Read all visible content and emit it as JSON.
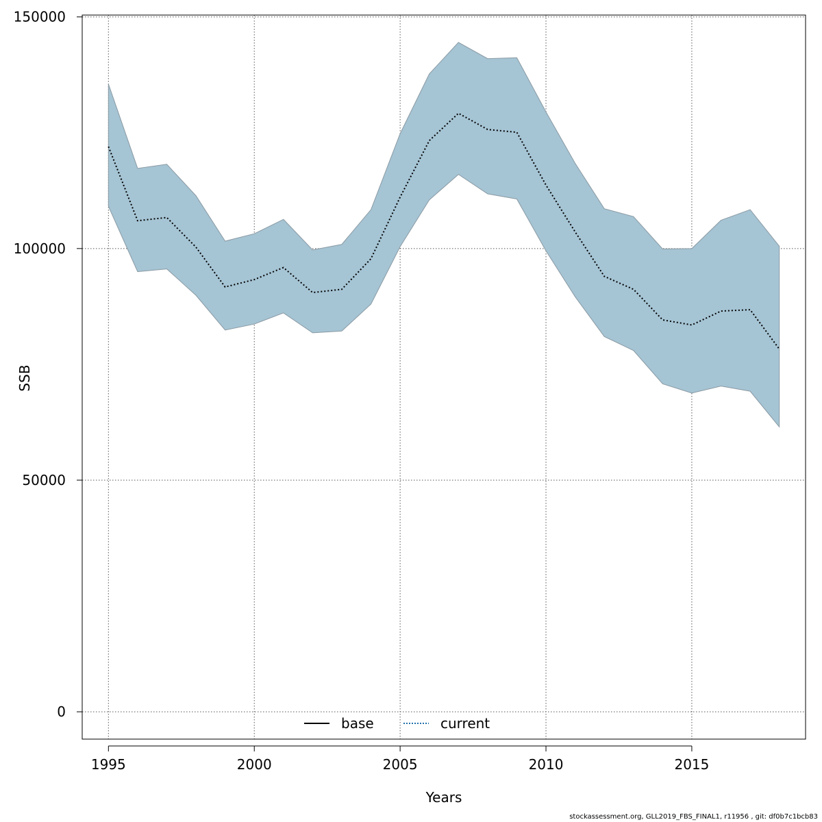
{
  "chart_data": {
    "type": "area",
    "xlabel": "Years",
    "ylabel": "SSB",
    "xlim": [
      1994.1,
      2018.9
    ],
    "ylim": [
      -5900,
      150400
    ],
    "x_ticks": [
      1995,
      2000,
      2005,
      2010,
      2015
    ],
    "y_ticks": [
      0,
      50000,
      100000,
      150000
    ],
    "grid": true,
    "legend_position": "bottom",
    "legend": [
      {
        "label": "base",
        "style": "solid",
        "color": "#000000"
      },
      {
        "label": "current",
        "style": "dotted",
        "color": "#1f6fa8"
      }
    ],
    "colors": {
      "band_fill": "#a5c4d4",
      "band_edge": "#8a9aa3",
      "line": "#000000",
      "grid": "#555555"
    },
    "series": [
      {
        "name": "current",
        "x": [
          1995,
          1996,
          1997,
          1998,
          1999,
          2000,
          2001,
          2002,
          2003,
          2004,
          2005,
          2006,
          2007,
          2008,
          2009,
          2010,
          2011,
          2012,
          2013,
          2014,
          2015,
          2016,
          2017,
          2018
        ],
        "values": [
          122000,
          106000,
          106700,
          100300,
          91700,
          93300,
          95900,
          90500,
          91200,
          97800,
          111100,
          123300,
          129200,
          125700,
          125100,
          113700,
          103600,
          94000,
          91200,
          84600,
          83500,
          86500,
          86800,
          78300
        ],
        "upper": [
          135500,
          117300,
          118200,
          111400,
          101600,
          103200,
          106300,
          99700,
          100900,
          108400,
          124800,
          137700,
          144500,
          141000,
          141200,
          129500,
          118400,
          108600,
          106900,
          99900,
          100000,
          106100,
          108400,
          100500
        ],
        "lower": [
          109100,
          95000,
          95600,
          89900,
          82400,
          83700,
          86100,
          81800,
          82200,
          88000,
          100400,
          110500,
          116000,
          111800,
          110700,
          99500,
          89600,
          81000,
          78000,
          70800,
          68800,
          70300,
          69200,
          61500
        ]
      }
    ]
  },
  "footer": "stockassessment.org, GLL2019_FBS_FINAL1, r11956 , git: df0b7c1bcb83"
}
